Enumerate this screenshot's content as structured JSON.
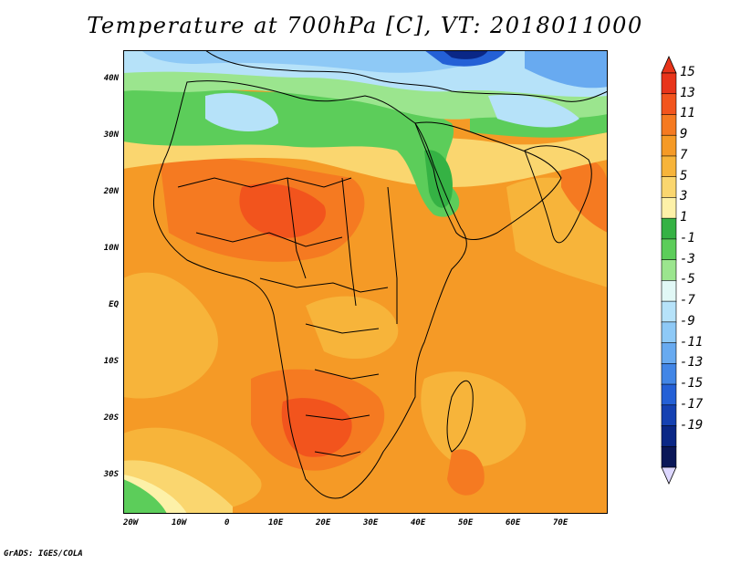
{
  "title": "Temperature at 700hPa [C], VT: 2018011000",
  "credit": "GrADS: IGES/COLA",
  "latitude_labels": [
    "40N",
    "30N",
    "20N",
    "10N",
    "EQ",
    "10S",
    "20S",
    "30S"
  ],
  "longitude_labels": [
    "20W",
    "10W",
    "0",
    "10E",
    "20E",
    "30E",
    "40E",
    "50E",
    "60E",
    "70E"
  ],
  "map": {
    "region": "Africa and Middle East",
    "lon_range": [
      -22,
      80
    ],
    "lat_range": [
      -37,
      45
    ],
    "variable": "Temperature at 700hPa",
    "units": "C"
  },
  "colorbar": {
    "labels": [
      "15",
      "13",
      "11",
      "9",
      "7",
      "5",
      "3",
      "1",
      "-1",
      "-3",
      "-5",
      "-7",
      "-9",
      "-11",
      "-13",
      "-15",
      "-17",
      "-19"
    ],
    "colors": [
      "#e8341a",
      "#f2541d",
      "#f57a21",
      "#f59a26",
      "#f7b43a",
      "#fad66f",
      "#fdf1a8",
      "#35b244",
      "#5ccd5a",
      "#9be58e",
      "#e1f8f6",
      "#b6e2f9",
      "#8ec9f6",
      "#68aaf0",
      "#4286e6",
      "#2460d6",
      "#1541b2",
      "#0a2786",
      "#0a1758"
    ],
    "top_arrow_color": "#e8341a",
    "bottom_arrow_color": "#ddd7ff"
  }
}
